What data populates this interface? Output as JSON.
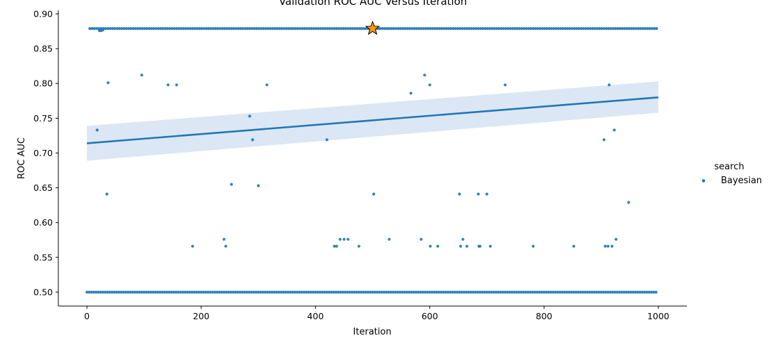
{
  "chart_data": {
    "type": "scatter",
    "title": "Validation ROC AUC Versus Iteration",
    "xlabel": "Iteration",
    "ylabel": "ROC AUC",
    "xlim": [
      -50,
      1050
    ],
    "ylim": [
      0.48,
      0.905
    ],
    "x_ticks": [
      "0",
      "200",
      "400",
      "600",
      "800",
      "1000"
    ],
    "x_tick_values": [
      0,
      200,
      400,
      600,
      800,
      1000
    ],
    "y_ticks": [
      "0.50",
      "0.55",
      "0.60",
      "0.65",
      "0.70",
      "0.75",
      "0.80",
      "0.85",
      "0.90"
    ],
    "y_tick_values": [
      0.5,
      0.55,
      0.6,
      0.65,
      0.7,
      0.75,
      0.8,
      0.85,
      0.9
    ],
    "grid": false,
    "legend": {
      "title": "search",
      "entries": [
        "Bayesian"
      ],
      "placement": "right"
    },
    "colors": {
      "points": "#1f77b4",
      "line": "#1f77b4",
      "band": "#cfdff0",
      "star": "#ff9900"
    },
    "regression": {
      "x": [
        0,
        1000
      ],
      "y": [
        0.714,
        0.78
      ],
      "ci_low": [
        0.689,
        0.758
      ],
      "ci_high": [
        0.739,
        0.803
      ]
    },
    "best_point": {
      "x": 500,
      "y": 0.879
    },
    "series": [
      {
        "name": "Bayesian",
        "points": [
          [
            18,
            0.733
          ],
          [
            35,
            0.641
          ],
          [
            37,
            0.801
          ],
          [
            96,
            0.812
          ],
          [
            142,
            0.798
          ],
          [
            157,
            0.798
          ],
          [
            185,
            0.566
          ],
          [
            240,
            0.576
          ],
          [
            243,
            0.566
          ],
          [
            253,
            0.655
          ],
          [
            285,
            0.753
          ],
          [
            290,
            0.719
          ],
          [
            300,
            0.653
          ],
          [
            315,
            0.798
          ],
          [
            420,
            0.719
          ],
          [
            433,
            0.566
          ],
          [
            437,
            0.566
          ],
          [
            443,
            0.576
          ],
          [
            450,
            0.576
          ],
          [
            457,
            0.576
          ],
          [
            476,
            0.566
          ],
          [
            502,
            0.641
          ],
          [
            529,
            0.576
          ],
          [
            567,
            0.786
          ],
          [
            585,
            0.576
          ],
          [
            591,
            0.812
          ],
          [
            600,
            0.798
          ],
          [
            601,
            0.566
          ],
          [
            614,
            0.566
          ],
          [
            652,
            0.641
          ],
          [
            654,
            0.566
          ],
          [
            658,
            0.576
          ],
          [
            665,
            0.566
          ],
          [
            685,
            0.641
          ],
          [
            686,
            0.566
          ],
          [
            688,
            0.566
          ],
          [
            700,
            0.641
          ],
          [
            706,
            0.566
          ],
          [
            732,
            0.798
          ],
          [
            781,
            0.566
          ],
          [
            852,
            0.566
          ],
          [
            905,
            0.719
          ],
          [
            907,
            0.566
          ],
          [
            912,
            0.566
          ],
          [
            914,
            0.798
          ],
          [
            919,
            0.566
          ],
          [
            923,
            0.733
          ],
          [
            926,
            0.576
          ],
          [
            948,
            0.629
          ]
        ],
        "band_high": {
          "value": 0.879,
          "start": 5,
          "end": 998,
          "step": 4
        },
        "band_low": {
          "value": 0.5,
          "start": 0,
          "end": 998,
          "step": 4
        }
      }
    ]
  }
}
